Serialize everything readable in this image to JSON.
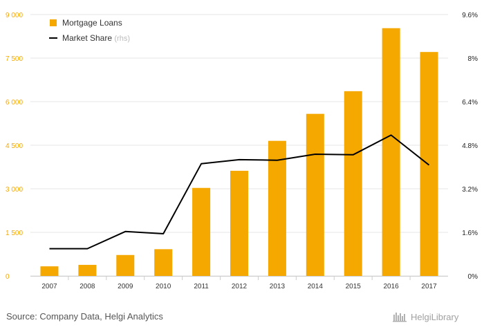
{
  "chart_data": {
    "type": "bar",
    "categories": [
      "2007",
      "2008",
      "2009",
      "2010",
      "2011",
      "2012",
      "2013",
      "2014",
      "2015",
      "2016",
      "2017"
    ],
    "series": [
      {
        "name": "Mortgage Loans",
        "type": "bar",
        "axis": "left",
        "color": "#f5a800",
        "values": [
          330,
          380,
          720,
          920,
          3030,
          3620,
          4650,
          5580,
          6360,
          8530,
          7710
        ]
      },
      {
        "name": "Market Share",
        "name_suffix": "(rhs)",
        "type": "line",
        "axis": "right",
        "color": "#000000",
        "values": [
          1.0,
          1.0,
          1.63,
          1.55,
          4.12,
          4.27,
          4.25,
          4.47,
          4.45,
          5.17,
          4.07
        ]
      }
    ],
    "y_left": {
      "ticks": [
        0,
        1500,
        3000,
        4500,
        6000,
        7500,
        9000
      ],
      "tick_labels": [
        "0",
        "1 500",
        "3 000",
        "4 500",
        "6 000",
        "7 500",
        "9 000"
      ],
      "ylim": [
        0,
        9000
      ]
    },
    "y_right": {
      "ticks": [
        0,
        1.6,
        3.2,
        4.8,
        6.4,
        8,
        9.6
      ],
      "tick_labels": [
        "0%",
        "1.6%",
        "3.2%",
        "4.8%",
        "6.4%",
        "8%",
        "9.6%"
      ],
      "ylim": [
        0,
        9.6
      ]
    },
    "grid": "horizontal",
    "legend_position": "top-left"
  },
  "footer": {
    "source": "Source: Company Data, Helgi Analytics",
    "brand": "HelgiLibrary"
  }
}
